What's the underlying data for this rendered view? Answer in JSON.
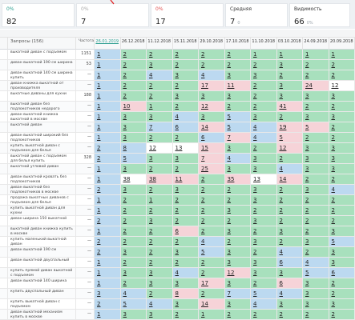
{
  "cards": [
    {
      "label": "0%",
      "value": "82"
    },
    {
      "label": "0%",
      "value": "7"
    },
    {
      "label": "0%",
      "value": "17"
    },
    {
      "label": "Средняя",
      "value": "7",
      "delta": "0"
    },
    {
      "label": "Видимость",
      "value": "66",
      "delta": "0%"
    }
  ],
  "table": {
    "query_header": "Запросы (156)",
    "freq_header": "Частота",
    "dates": [
      "26.01.2019",
      "26.12.2018",
      "11.12.2018",
      "15.11.2018",
      "29.10.2018",
      "17.10.2018",
      "11.10.2018",
      "03.10.2018",
      "24.09.2018",
      "20.09.2018"
    ],
    "rows": [
      {
        "query": "выкатной диван с подъемом",
        "freq": "1151",
        "positions": [
          1,
          2,
          2,
          2,
          2,
          2,
          1,
          1,
          1,
          1
        ]
      },
      {
        "query": "диван выкатной 190 см ширина",
        "freq": "53",
        "positions": [
          1,
          2,
          3,
          2,
          2,
          2,
          2,
          3,
          2,
          2
        ]
      },
      {
        "query": "диван выкатной 140 см ширина купить",
        "freq": "—",
        "positions": [
          1,
          2,
          4,
          3,
          4,
          3,
          3,
          2,
          2,
          2
        ]
      },
      {
        "query": "диван книжка выкатной от производителя",
        "freq": "—",
        "positions": [
          1,
          2,
          2,
          2,
          17,
          11,
          2,
          3,
          24,
          12
        ]
      },
      {
        "query": "выкатные диваны для кухни",
        "freq": "188",
        "positions": [
          1,
          2,
          2,
          3,
          3,
          3,
          2,
          3,
          3,
          3
        ]
      },
      {
        "query": "выкатной диван без подлокотников недорого",
        "freq": "—",
        "positions": [
          1,
          10,
          1,
          2,
          12,
          2,
          2,
          41,
          2,
          2
        ]
      },
      {
        "query": "диван выкатной книжка выкатной в москве",
        "freq": "—",
        "positions": [
          1,
          3,
          3,
          4,
          3,
          5,
          3,
          2,
          3,
          3
        ]
      },
      {
        "query": "выкатной диван",
        "freq": "—",
        "positions": [
          1,
          3,
          7,
          6,
          14,
          5,
          4,
          19,
          5,
          2
        ]
      },
      {
        "query": "диван выкатной широкий без подлокотников",
        "freq": "—",
        "positions": [
          1,
          3,
          2,
          2,
          6,
          7,
          4,
          5,
          2,
          2
        ]
      },
      {
        "query": "купить выкатной диван с подъемом для белья",
        "freq": "—",
        "positions": [
          2,
          8,
          12,
          13,
          15,
          3,
          2,
          12,
          3,
          3
        ]
      },
      {
        "query": "выкатной диван с подъемом для белья купить",
        "freq": "328",
        "positions": [
          2,
          5,
          3,
          3,
          7,
          4,
          3,
          2,
          3,
          3
        ]
      },
      {
        "query": "выкатной угловой диван",
        "freq": "—",
        "positions": [
          1,
          3,
          2,
          2,
          25,
          3,
          3,
          4,
          3,
          3
        ]
      },
      {
        "query": "диван выкатной кровать без подлокотников",
        "freq": "—",
        "positions": [
          1,
          38,
          38,
          11,
          2,
          35,
          13,
          14,
          2,
          2
        ]
      },
      {
        "query": "диван выкатной без подлокотников в москве",
        "freq": "—",
        "positions": [
          2,
          3,
          2,
          3,
          2,
          2,
          3,
          2,
          3,
          4
        ]
      },
      {
        "query": "продажа выкатных диванов с подъемом для белья",
        "freq": "—",
        "positions": [
          1,
          2,
          1,
          2,
          2,
          2,
          3,
          2,
          2,
          2
        ]
      },
      {
        "query": "купить выкатной диван для кухни",
        "freq": "—",
        "positions": [
          1,
          2,
          2,
          2,
          2,
          3,
          2,
          2,
          2,
          2
        ]
      },
      {
        "query": "диван ширина 150 выкатной",
        "freq": "—",
        "positions": [
          2,
          2,
          3,
          2,
          2,
          2,
          3,
          2,
          2,
          2
        ]
      },
      {
        "query": "выкатной диван книжка купить в москве",
        "freq": "—",
        "positions": [
          1,
          2,
          2,
          6,
          2,
          3,
          2,
          3,
          2,
          3
        ]
      },
      {
        "query": "купить маленький выкатной диван",
        "freq": "—",
        "positions": [
          2,
          2,
          2,
          2,
          4,
          2,
          3,
          2,
          3,
          5
        ]
      },
      {
        "query": "диван выкатной 190 см",
        "freq": "—",
        "positions": [
          2,
          3,
          2,
          3,
          5,
          3,
          2,
          4,
          2,
          3
        ]
      },
      {
        "query": "диван выкатной двуспальный",
        "freq": "—",
        "positions": [
          1,
          2,
          2,
          2,
          2,
          3,
          3,
          6,
          4,
          3
        ]
      },
      {
        "query": "купить прямой диван выкатной с подъемом",
        "freq": "—",
        "positions": [
          1,
          3,
          3,
          4,
          2,
          12,
          3,
          3,
          5,
          6
        ]
      },
      {
        "query": "диван выкатной 140 ширина",
        "freq": "—",
        "positions": [
          1,
          2,
          3,
          3,
          17,
          3,
          2,
          6,
          3,
          2
        ]
      },
      {
        "query": "купить двуспальный диван",
        "freq": "—",
        "positions": [
          3,
          4,
          2,
          8,
          2,
          7,
          5,
          4,
          3,
          2
        ]
      },
      {
        "query": "купить выкатной диван с подъемом",
        "freq": "—",
        "positions": [
          2,
          5,
          4,
          3,
          14,
          3,
          4,
          3,
          3,
          3
        ]
      },
      {
        "query": "диван выкатной механизм купить в москве",
        "freq": "—",
        "positions": [
          1,
          3,
          3,
          2,
          1,
          2,
          2,
          2,
          2,
          2
        ]
      }
    ]
  }
}
